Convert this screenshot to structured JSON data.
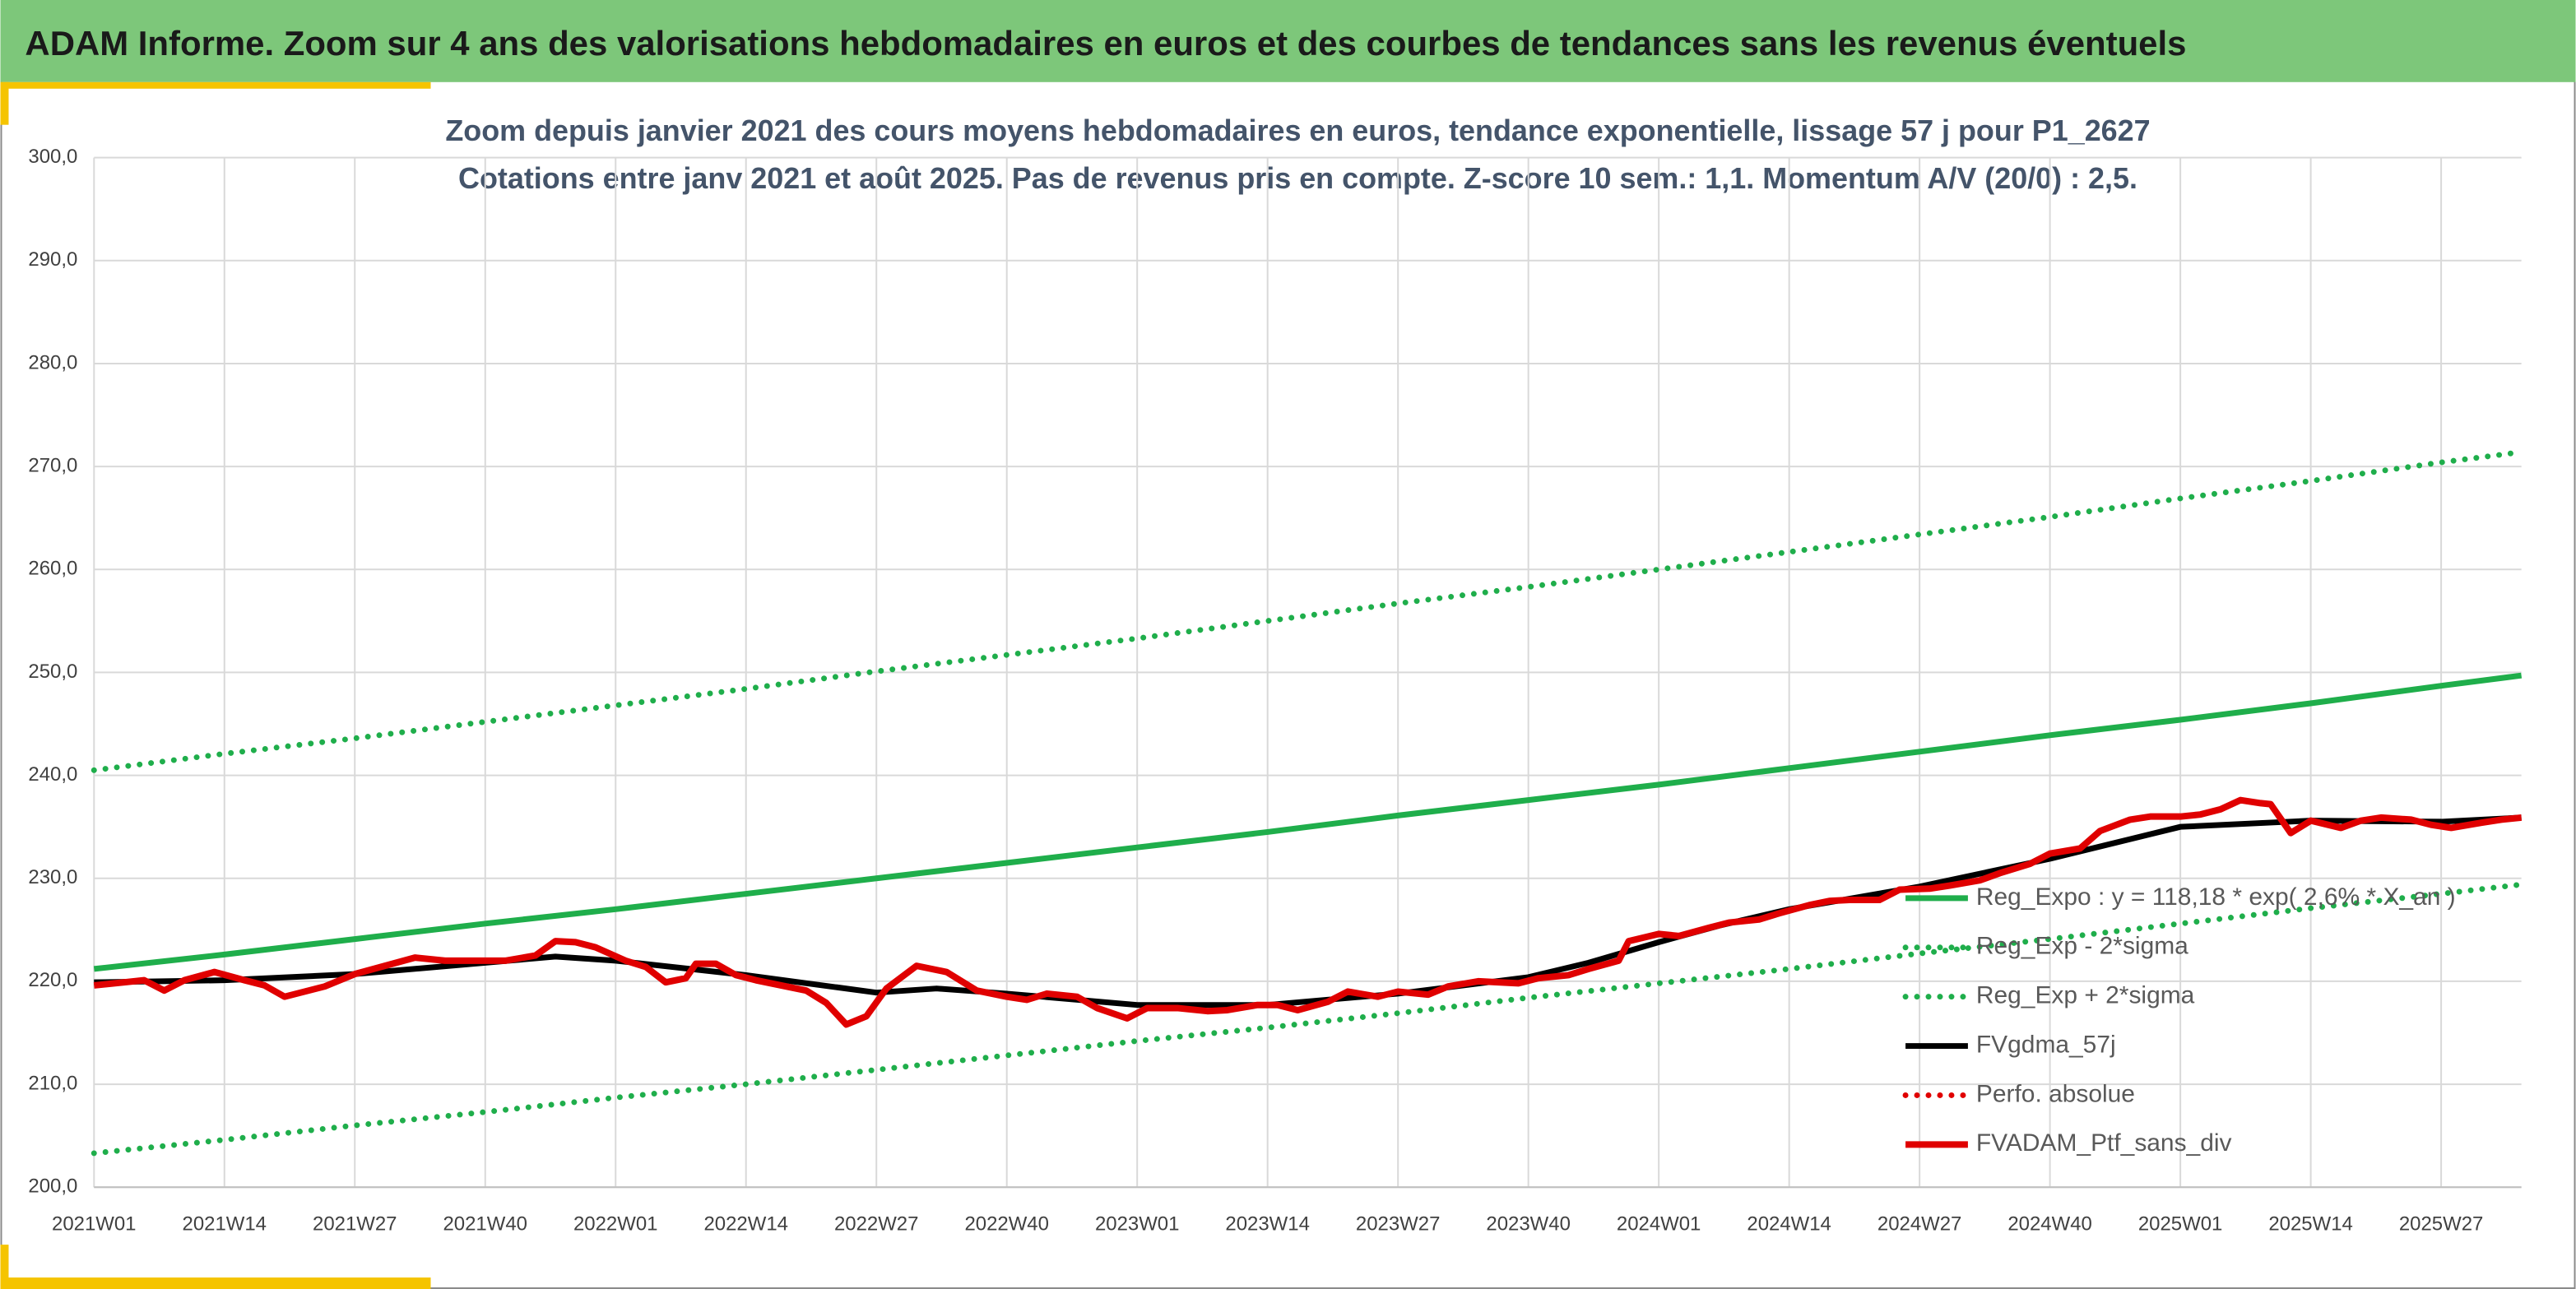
{
  "header": {
    "title": "ADAM Informe. Zoom sur 4 ans des valorisations hebdomadaires en euros et des courbes de tendances sans les revenus éventuels"
  },
  "chart_data": {
    "type": "line",
    "title": "Zoom depuis janvier 2021 des cours moyens hebdomadaires en euros, tendance exponentielle, lissage 57 j pour P1_2627",
    "subtitle": "Cotations entre janv 2021 et août 2025. Pas de revenus pris en compte. Z-score 10 sem.: 1,1. Momentum A/V (20/0) : 2,5.",
    "xlim": [
      0,
      242
    ],
    "xticks": [
      {
        "value": 0,
        "label": "2021W01"
      },
      {
        "value": 13,
        "label": "2021W14"
      },
      {
        "value": 26,
        "label": "2021W27"
      },
      {
        "value": 39,
        "label": "2021W40"
      },
      {
        "value": 52,
        "label": "2022W01"
      },
      {
        "value": 65,
        "label": "2022W14"
      },
      {
        "value": 78,
        "label": "2022W27"
      },
      {
        "value": 91,
        "label": "2022W40"
      },
      {
        "value": 104,
        "label": "2023W01"
      },
      {
        "value": 117,
        "label": "2023W14"
      },
      {
        "value": 130,
        "label": "2023W27"
      },
      {
        "value": 143,
        "label": "2023W40"
      },
      {
        "value": 156,
        "label": "2024W01"
      },
      {
        "value": 169,
        "label": "2024W14"
      },
      {
        "value": 182,
        "label": "2024W27"
      },
      {
        "value": 195,
        "label": "2024W40"
      },
      {
        "value": 208,
        "label": "2025W01"
      },
      {
        "value": 221,
        "label": "2025W14"
      },
      {
        "value": 234,
        "label": "2025W27"
      }
    ],
    "ylim": [
      200,
      300
    ],
    "yticks": [
      {
        "value": 200,
        "label": "200,0"
      },
      {
        "value": 210,
        "label": "210,0"
      },
      {
        "value": 220,
        "label": "220,0"
      },
      {
        "value": 230,
        "label": "230,0"
      },
      {
        "value": 240,
        "label": "240,0"
      },
      {
        "value": 250,
        "label": "250,0"
      },
      {
        "value": 260,
        "label": "260,0"
      },
      {
        "value": 270,
        "label": "270,0"
      },
      {
        "value": 280,
        "label": "280,0"
      },
      {
        "value": 290,
        "label": "290,0"
      },
      {
        "value": 300,
        "label": "300,0"
      }
    ],
    "grid": true,
    "legend": "lower-right",
    "series": [
      {
        "name": "Reg_Expo : y = 118,18 * exp( 2,6% * X_an )",
        "color": "#1fae4b",
        "style": "solid",
        "width": 3.5,
        "x": [
          0,
          13,
          26,
          39,
          52,
          65,
          78,
          91,
          104,
          117,
          130,
          143,
          156,
          169,
          182,
          195,
          208,
          221,
          234,
          242
        ],
        "values": [
          221.2,
          222.6,
          224.1,
          225.6,
          227.0,
          228.5,
          230.0,
          231.5,
          233.0,
          234.5,
          236.1,
          237.6,
          239.1,
          240.7,
          242.3,
          243.9,
          245.4,
          247.0,
          248.7,
          249.7
        ]
      },
      {
        "name": "Reg_Exp - 2*sigma",
        "color": "#1fae4b",
        "style": "dotted",
        "width": 3.5,
        "x": [
          0,
          13,
          26,
          39,
          52,
          65,
          78,
          91,
          104,
          117,
          130,
          143,
          156,
          169,
          182,
          195,
          208,
          221,
          234,
          242
        ],
        "values": [
          203.3,
          204.6,
          206.0,
          207.3,
          208.7,
          210.0,
          211.4,
          212.8,
          214.2,
          215.5,
          216.9,
          218.4,
          219.8,
          221.2,
          222.7,
          224.1,
          225.6,
          227.1,
          228.5,
          229.4
        ]
      },
      {
        "name": "Reg_Exp + 2*sigma",
        "color": "#1fae4b",
        "style": "dotted",
        "width": 3.5,
        "x": [
          0,
          13,
          26,
          39,
          52,
          65,
          78,
          91,
          104,
          117,
          130,
          143,
          156,
          169,
          182,
          195,
          208,
          221,
          234,
          242
        ],
        "values": [
          240.5,
          242.1,
          243.6,
          245.2,
          246.8,
          248.4,
          250.1,
          251.7,
          253.3,
          255.0,
          256.7,
          258.3,
          260.0,
          261.7,
          263.4,
          265.1,
          266.9,
          268.6,
          270.4,
          271.4
        ]
      },
      {
        "name": "FVgdma_57j",
        "color": "#000000",
        "style": "solid",
        "width": 3.5,
        "x": [
          0,
          13,
          26,
          39,
          46,
          52,
          65,
          78,
          84,
          91,
          104,
          117,
          130,
          143,
          149,
          156,
          162,
          169,
          182,
          195,
          208,
          221,
          234,
          242
        ],
        "values": [
          219.9,
          220.1,
          220.7,
          221.8,
          222.4,
          222.0,
          220.6,
          218.9,
          219.3,
          218.8,
          217.7,
          217.7,
          218.8,
          220.4,
          221.8,
          223.8,
          225.4,
          227.0,
          229.2,
          231.9,
          235.0,
          235.6,
          235.5,
          235.9
        ]
      },
      {
        "name": "Perfo. absolue",
        "color": "#e00000",
        "style": "dotted",
        "width": 3.5
      },
      {
        "name": "FVADAM_Ptf_sans_div",
        "color": "#e00000",
        "style": "solid",
        "width": 4,
        "x": [
          0,
          3,
          5,
          7,
          9,
          12,
          15,
          17,
          19,
          23,
          26,
          29,
          32,
          35,
          38,
          41,
          44,
          46,
          48,
          50,
          53,
          55,
          57,
          59,
          60,
          62,
          64,
          66,
          69,
          71,
          73,
          75,
          77,
          79,
          82,
          85,
          88,
          91,
          93,
          95,
          98,
          100,
          103,
          105,
          108,
          111,
          113,
          116,
          118,
          120,
          123,
          125,
          128,
          130,
          133,
          135,
          138,
          142,
          144,
          147,
          149,
          152,
          153,
          156,
          158,
          161,
          163,
          166,
          168,
          171,
          173,
          175,
          178,
          180,
          183,
          185,
          188,
          190,
          193,
          195,
          198,
          200,
          203,
          205,
          208,
          210,
          212,
          214,
          216,
          217,
          219,
          221,
          224,
          226,
          228,
          231,
          233,
          235,
          238,
          240,
          242
        ],
        "values": [
          219.6,
          219.9,
          220.1,
          219.1,
          220.1,
          220.9,
          220.1,
          219.6,
          218.5,
          219.5,
          220.7,
          221.5,
          222.3,
          222.0,
          222.0,
          222.0,
          222.5,
          223.9,
          223.8,
          223.3,
          222.0,
          221.4,
          219.9,
          220.3,
          221.7,
          221.7,
          220.6,
          220.1,
          219.5,
          219.1,
          217.9,
          215.8,
          216.6,
          219.3,
          221.5,
          220.9,
          219.1,
          218.5,
          218.2,
          218.8,
          218.5,
          217.4,
          216.4,
          217.4,
          217.4,
          217.1,
          217.2,
          217.7,
          217.7,
          217.2,
          218.0,
          219.0,
          218.5,
          219.0,
          218.7,
          219.5,
          220.0,
          219.8,
          220.3,
          220.6,
          221.2,
          222.0,
          223.9,
          224.6,
          224.4,
          225.2,
          225.7,
          226.0,
          226.6,
          227.4,
          227.8,
          227.9,
          227.9,
          228.9,
          229.0,
          229.3,
          229.8,
          230.5,
          231.4,
          232.4,
          232.9,
          234.6,
          235.7,
          236.0,
          236.0,
          236.2,
          236.7,
          237.6,
          237.3,
          237.2,
          234.4,
          235.6,
          234.9,
          235.6,
          235.9,
          235.7,
          235.2,
          234.9,
          235.4,
          235.7,
          235.9
        ]
      }
    ]
  }
}
